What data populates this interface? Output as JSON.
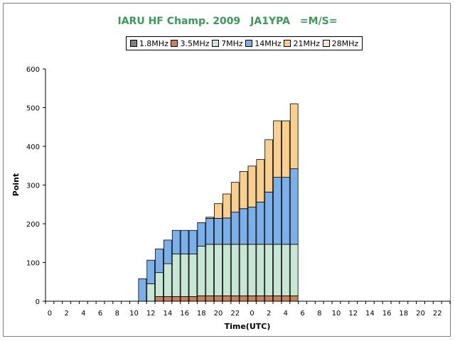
{
  "chart_data": {
    "type": "bar",
    "stacked": true,
    "title": "IARU HF Champ. 2009　JA1YPA　=M/S=",
    "xlabel": "Time(UTC)",
    "ylabel": "Point",
    "ylim": [
      0,
      600
    ],
    "yticks": [
      "0",
      "100",
      "200",
      "300",
      "400",
      "500",
      "600"
    ],
    "xticks": [
      "0",
      "2",
      "4",
      "6",
      "8",
      "10",
      "12",
      "14",
      "16",
      "18",
      "20",
      "22",
      "0",
      "2",
      "4",
      "6",
      "8",
      "10",
      "12",
      "14",
      "16",
      "18",
      "20",
      "22"
    ],
    "grid": false,
    "legend_position": "top",
    "categories": [
      "0",
      "1",
      "2",
      "3",
      "4",
      "5",
      "6",
      "7",
      "8",
      "9",
      "10",
      "11",
      "12",
      "13",
      "14",
      "15",
      "16",
      "17",
      "18",
      "19",
      "20",
      "21",
      "22",
      "23",
      "0",
      "1",
      "2",
      "3",
      "4",
      "5",
      "6",
      "7",
      "8",
      "9",
      "10",
      "11",
      "12",
      "13",
      "14",
      "15",
      "16",
      "17",
      "18",
      "19",
      "20",
      "21",
      "22",
      "23"
    ],
    "series": [
      {
        "name": "1.8MHz",
        "color": "#808080",
        "values": [
          0,
          0,
          0,
          0,
          0,
          0,
          0,
          0,
          0,
          0,
          0,
          0,
          0,
          0,
          0,
          0,
          0,
          0,
          0,
          0,
          0,
          0,
          0,
          0,
          0,
          0,
          0,
          0,
          0,
          0,
          0,
          0,
          0,
          0,
          0,
          0,
          0,
          0,
          0,
          0,
          0,
          0,
          0,
          0,
          0,
          0,
          0,
          0
        ]
      },
      {
        "name": "3.5MHz",
        "color": "#c8835a",
        "values": [
          0,
          0,
          0,
          0,
          0,
          0,
          0,
          0,
          0,
          0,
          0,
          0,
          0,
          12,
          12,
          12,
          12,
          12,
          14,
          14,
          14,
          14,
          14,
          14,
          14,
          14,
          14,
          14,
          14,
          14,
          0,
          0,
          0,
          0,
          0,
          0,
          0,
          0,
          0,
          0,
          0,
          0,
          0,
          0,
          0,
          0,
          0,
          0
        ]
      },
      {
        "name": "7MHz",
        "color": "#c8e6d4",
        "values": [
          0,
          0,
          0,
          0,
          0,
          0,
          0,
          0,
          0,
          0,
          0,
          0,
          45,
          62,
          85,
          110,
          110,
          110,
          128,
          133,
          133,
          133,
          133,
          133,
          133,
          133,
          133,
          133,
          133,
          133,
          0,
          0,
          0,
          0,
          0,
          0,
          0,
          0,
          0,
          0,
          0,
          0,
          0,
          0,
          0,
          0,
          0,
          0
        ]
      },
      {
        "name": "14MHz",
        "color": "#7cb0ea",
        "values": [
          0,
          0,
          0,
          0,
          0,
          0,
          0,
          0,
          0,
          0,
          0,
          58,
          61,
          61,
          61,
          61,
          61,
          61,
          61,
          67,
          67,
          68,
          83,
          92,
          96,
          109,
          135,
          173,
          173,
          195,
          0,
          0,
          0,
          0,
          0,
          0,
          0,
          0,
          0,
          0,
          0,
          0,
          0,
          0,
          0,
          0,
          0,
          0
        ]
      },
      {
        "name": "21MHz",
        "color": "#f8cf8e",
        "values": [
          0,
          0,
          0,
          0,
          0,
          0,
          0,
          0,
          0,
          0,
          0,
          0,
          0,
          0,
          0,
          0,
          0,
          0,
          0,
          3,
          38,
          62,
          77,
          96,
          106,
          110,
          135,
          146,
          146,
          168,
          0,
          0,
          0,
          0,
          0,
          0,
          0,
          0,
          0,
          0,
          0,
          0,
          0,
          0,
          0,
          0,
          0,
          0
        ]
      },
      {
        "name": "28MHz",
        "color": "#fbe9cf",
        "values": [
          0,
          0,
          0,
          0,
          0,
          0,
          0,
          0,
          0,
          0,
          0,
          0,
          0,
          0,
          0,
          0,
          0,
          0,
          0,
          0,
          0,
          0,
          0,
          0,
          0,
          0,
          0,
          0,
          0,
          0,
          0,
          0,
          0,
          0,
          0,
          0,
          0,
          0,
          0,
          0,
          0,
          0,
          0,
          0,
          0,
          0,
          0,
          0
        ]
      }
    ]
  }
}
